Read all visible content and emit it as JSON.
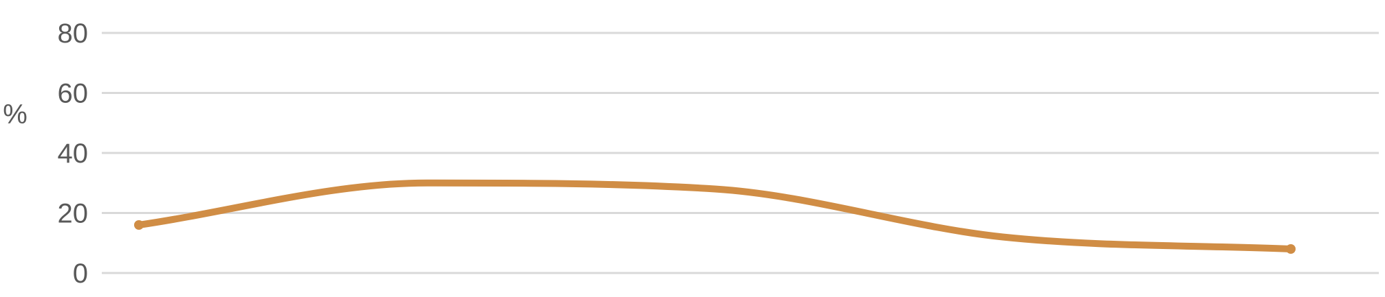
{
  "chart_data": {
    "type": "line",
    "title": "",
    "xlabel": "",
    "ylabel": "%",
    "ylim": [
      0,
      80
    ],
    "yticks": [
      0,
      20,
      40,
      60,
      80
    ],
    "grid": true,
    "smooth": true,
    "x": [
      1,
      2,
      3,
      4,
      5
    ],
    "series": [
      {
        "values": [
          16,
          30,
          28,
          12,
          8
        ],
        "color": "#d08d45"
      }
    ]
  }
}
